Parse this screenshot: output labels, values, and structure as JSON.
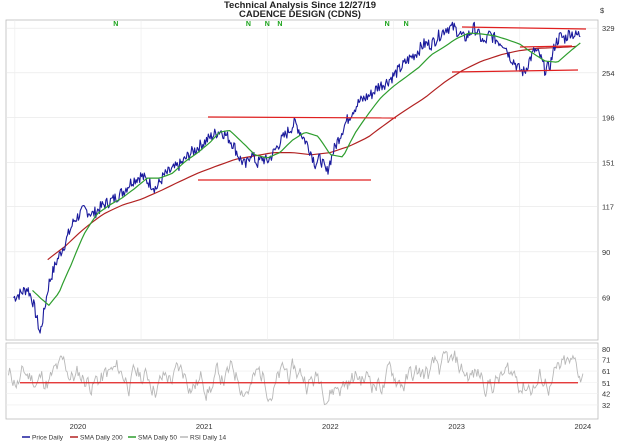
{
  "chart_data": {
    "type": "line",
    "title": "Technical Analysis Since 12/27/19",
    "subtitle": "CADENCE DESIGN (CDNS)",
    "y_axis_label": "$",
    "x_ticks": [
      "2020",
      "2021",
      "2022",
      "2023",
      "2024"
    ],
    "y_ticks": [
      "329",
      "254",
      "196",
      "151",
      "117",
      "90",
      "69"
    ],
    "rsi_ticks": [
      "80",
      "71",
      "61",
      "51",
      "42",
      "32"
    ],
    "ylim": [
      54,
      345
    ],
    "scale": "log",
    "rsi_reference": 51,
    "n_marker_label": "N",
    "n_markers_x": [
      2020.8,
      2021.85,
      2022.0,
      2022.1,
      2022.95,
      2023.1
    ],
    "series": [
      {
        "name": "Price Daily",
        "color": "#1a1a9c",
        "x": [
          2019.99,
          2020.05,
          2020.1,
          2020.14,
          2020.18,
          2020.2,
          2020.23,
          2020.27,
          2020.33,
          2020.4,
          2020.47,
          2020.55,
          2020.62,
          2020.7,
          2020.78,
          2020.86,
          2020.93,
          2021.0,
          2021.06,
          2021.12,
          2021.18,
          2021.25,
          2021.32,
          2021.38,
          2021.45,
          2021.52,
          2021.58,
          2021.63,
          2021.68,
          2021.73,
          2021.78,
          2021.83,
          2021.87,
          2021.92,
          2021.96,
          2022.0,
          2022.05,
          2022.1,
          2022.16,
          2022.22,
          2022.28,
          2022.33,
          2022.38,
          2022.42,
          2022.47,
          2022.52,
          2022.57,
          2022.62,
          2022.68,
          2022.73,
          2022.78,
          2022.83,
          2022.88,
          2022.94,
          2023.0,
          2023.06,
          2023.12,
          2023.18,
          2023.24,
          2023.3,
          2023.36,
          2023.42,
          2023.48,
          2023.52,
          2023.56,
          2023.6,
          2023.64,
          2023.68,
          2023.72,
          2023.76,
          2023.8,
          2023.84,
          2023.88,
          2023.92,
          2023.96,
          2024.0,
          2024.04,
          2024.08,
          2024.12,
          2024.16,
          2024.2,
          2024.24,
          2024.28,
          2024.32,
          2024.36,
          2024.4,
          2024.44,
          2024.48
        ],
        "y": [
          69,
          71,
          73,
          68,
          60,
          56,
          63,
          75,
          85,
          95,
          108,
          115,
          112,
          118,
          122,
          128,
          136,
          140,
          135,
          130,
          140,
          145,
          150,
          158,
          165,
          172,
          178,
          182,
          176,
          168,
          155,
          148,
          160,
          150,
          155,
          152,
          160,
          170,
          180,
          190,
          176,
          165,
          150,
          155,
          142,
          160,
          175,
          190,
          205,
          215,
          220,
          225,
          235,
          240,
          250,
          262,
          275,
          285,
          300,
          300,
          315,
          330,
          330,
          320,
          310,
          318,
          330,
          315,
          300,
          318,
          310,
          304,
          300,
          280,
          270,
          258,
          255,
          275,
          290,
          280,
          258,
          265,
          300,
          314,
          310,
          322,
          315,
          318
        ]
      },
      {
        "name": "SMA Daily 200",
        "color": "#b22222",
        "x": [
          2020.26,
          2020.4,
          2020.55,
          2020.7,
          2020.85,
          2021.0,
          2021.15,
          2021.3,
          2021.45,
          2021.6,
          2021.75,
          2021.9,
          2022.05,
          2022.2,
          2022.35,
          2022.5,
          2022.65,
          2022.8,
          2022.95,
          2023.1,
          2023.25,
          2023.4,
          2023.55,
          2023.7,
          2023.85,
          2024.0,
          2024.15,
          2024.3,
          2024.45
        ],
        "y": [
          86,
          93,
          103,
          112,
          118,
          122,
          128,
          135,
          142,
          148,
          154,
          157,
          160,
          160,
          158,
          160,
          166,
          175,
          190,
          205,
          220,
          240,
          258,
          272,
          282,
          289,
          293,
          294,
          296
        ]
      },
      {
        "name": "SMA Daily 50",
        "color": "#2e9e2e",
        "x": [
          2020.14,
          2020.2,
          2020.27,
          2020.35,
          2020.45,
          2020.55,
          2020.65,
          2020.75,
          2020.85,
          2020.95,
          2021.05,
          2021.15,
          2021.25,
          2021.35,
          2021.45,
          2021.55,
          2021.62,
          2021.7,
          2021.8,
          2021.9,
          2022.0,
          2022.1,
          2022.2,
          2022.3,
          2022.4,
          2022.5,
          2022.6,
          2022.7,
          2022.8,
          2022.9,
          2023.0,
          2023.1,
          2023.2,
          2023.3,
          2023.4,
          2023.5,
          2023.6,
          2023.7,
          2023.8,
          2023.9,
          2024.0,
          2024.1,
          2024.2,
          2024.3,
          2024.4,
          2024.48
        ],
        "y": [
          72,
          69,
          66,
          71,
          84,
          100,
          112,
          118,
          123,
          130,
          138,
          138,
          142,
          152,
          160,
          170,
          180,
          182,
          170,
          158,
          155,
          160,
          172,
          180,
          176,
          158,
          156,
          180,
          200,
          220,
          235,
          248,
          262,
          282,
          295,
          310,
          320,
          318,
          315,
          308,
          300,
          285,
          272,
          270,
          288,
          302
        ]
      },
      {
        "name": "RSI Daily 14",
        "color": "#b8b8b8",
        "x": [
          2019.95,
          2024.5
        ],
        "y": [
          32,
          80
        ]
      }
    ],
    "legend": [
      "Price Daily",
      "SMA Daily 200",
      "SMA Daily 50",
      "RSI Daily 14"
    ],
    "legend_placement": "bottom-left"
  }
}
